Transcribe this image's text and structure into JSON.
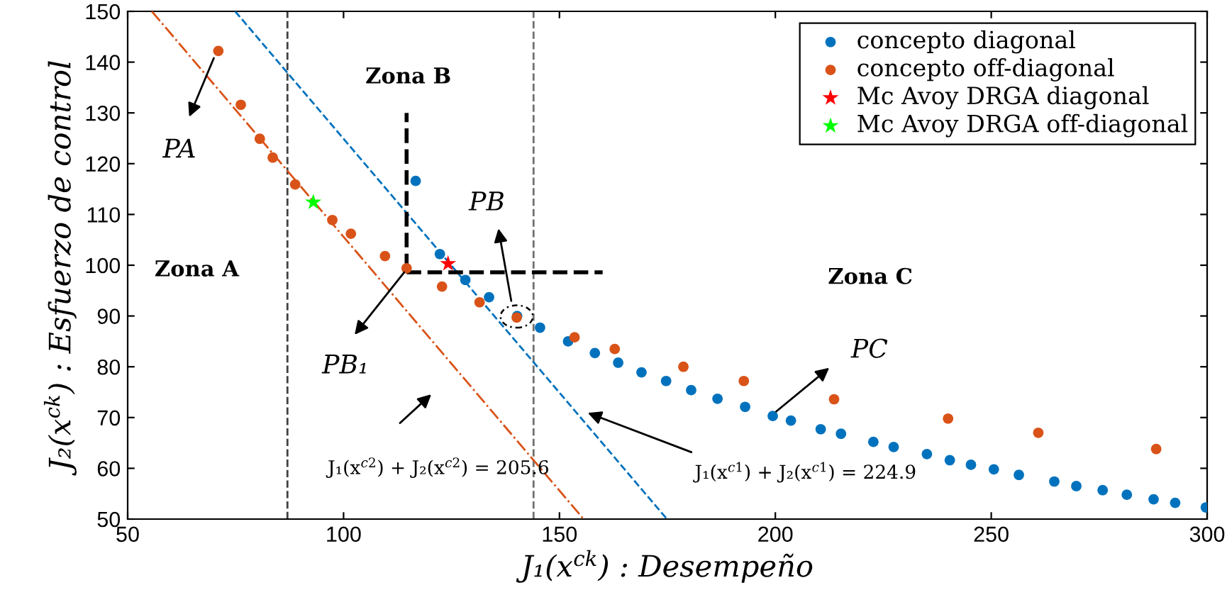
{
  "chart_data": {
    "type": "scatter",
    "xlabel": "J₁(x$^{ck}$) : Desempeño",
    "ylabel": "J₂(x$^{ck}$) : Esfuerzo de control",
    "xlim": [
      50,
      300
    ],
    "ylim": [
      50,
      150
    ],
    "xticks": [
      50,
      100,
      150,
      200,
      250,
      300
    ],
    "yticks": [
      50,
      60,
      70,
      80,
      90,
      100,
      110,
      120,
      130,
      140,
      150
    ],
    "grid": false,
    "legend": "top right",
    "series": [
      {
        "name": "concepto diagonal",
        "color": "#0072bd",
        "marker": "circle",
        "x": [
          116.7,
          122.3,
          128.2,
          133.7,
          140.2,
          145.5,
          152.0,
          158.2,
          163.6,
          169.0,
          174.7,
          180.5,
          186.6,
          193.0,
          199.4,
          203.6,
          210.5,
          215.2,
          222.7,
          227.4,
          235.1,
          240.4,
          245.3,
          250.6,
          256.4,
          264.6,
          269.7,
          275.8,
          281.4,
          287.6,
          292.6,
          299.7
        ],
        "values": [
          116.6,
          102.2,
          97.1,
          93.7,
          90.0,
          87.7,
          85.0,
          82.7,
          80.8,
          78.9,
          77.2,
          75.4,
          73.7,
          72.1,
          70.3,
          69.4,
          67.7,
          66.8,
          65.2,
          64.2,
          62.8,
          61.6,
          60.7,
          59.8,
          58.7,
          57.4,
          56.5,
          55.7,
          54.8,
          53.9,
          53.2,
          52.3
        ]
      },
      {
        "name": "concepto off-diagonal",
        "color": "#d95319",
        "marker": "circle",
        "x": [
          71.0,
          76.2,
          80.6,
          83.6,
          88.8,
          97.4,
          101.7,
          109.6,
          114.6,
          122.8,
          131.5,
          140.1,
          153.5,
          162.8,
          178.7,
          192.7,
          213.6,
          240.0,
          260.9,
          288.2
        ],
        "values": [
          142.2,
          131.6,
          124.9,
          121.2,
          115.9,
          108.9,
          106.2,
          101.8,
          99.4,
          95.8,
          92.7,
          89.7,
          85.8,
          83.5,
          80.0,
          77.2,
          73.6,
          69.8,
          67.0,
          63.8
        ]
      },
      {
        "name": "Mc Avoy DRGA diagonal",
        "color": "#ff0000",
        "marker": "star",
        "x": [
          124.2
        ],
        "values": [
          100.3
        ]
      },
      {
        "name": "Mc Avoy DRGA off-diagonal",
        "color": "#00ff00",
        "marker": "star",
        "x": [
          93.0
        ],
        "values": [
          112.4
        ]
      },
      {
        "type": "line",
        "color": "#0072bd",
        "marker": "none",
        "line_style": "dashed",
        "x": [
          74.9,
          174.9
        ],
        "values": [
          150,
          50
        ]
      },
      {
        "type": "line",
        "color": "#d95319",
        "marker": "none",
        "line_style": "dashdot",
        "x": [
          55.6,
          155.6
        ],
        "values": [
          150,
          50
        ]
      },
      {
        "type": "line",
        "color": "#000000",
        "marker": "none",
        "line_style": "dashed",
        "x": [
          114.6,
          114.6
        ],
        "values": [
          99.4,
          130
        ]
      },
      {
        "type": "line",
        "color": "#000000",
        "marker": "none",
        "line_style": "dashed",
        "x": [
          114.6,
          160
        ],
        "values": [
          98.6,
          98.6
        ]
      }
    ],
    "ref_lines": [
      {
        "axis": "x",
        "value": 87,
        "color": "#404040",
        "line_style": "dashed"
      },
      {
        "axis": "x",
        "value": 144,
        "color": "#707070",
        "line_style": "dashed"
      }
    ],
    "annotations": [
      "Zona A",
      "Zona B",
      "Zona C",
      "PA",
      "PB",
      "PB₁",
      "PC",
      "J₁(x$^{c2}$) + J₂(x$^{c2}$) = 205.6",
      "J₁(x$^{c1}$) + J₂(x$^{c1}$) = 224.9"
    ]
  }
}
